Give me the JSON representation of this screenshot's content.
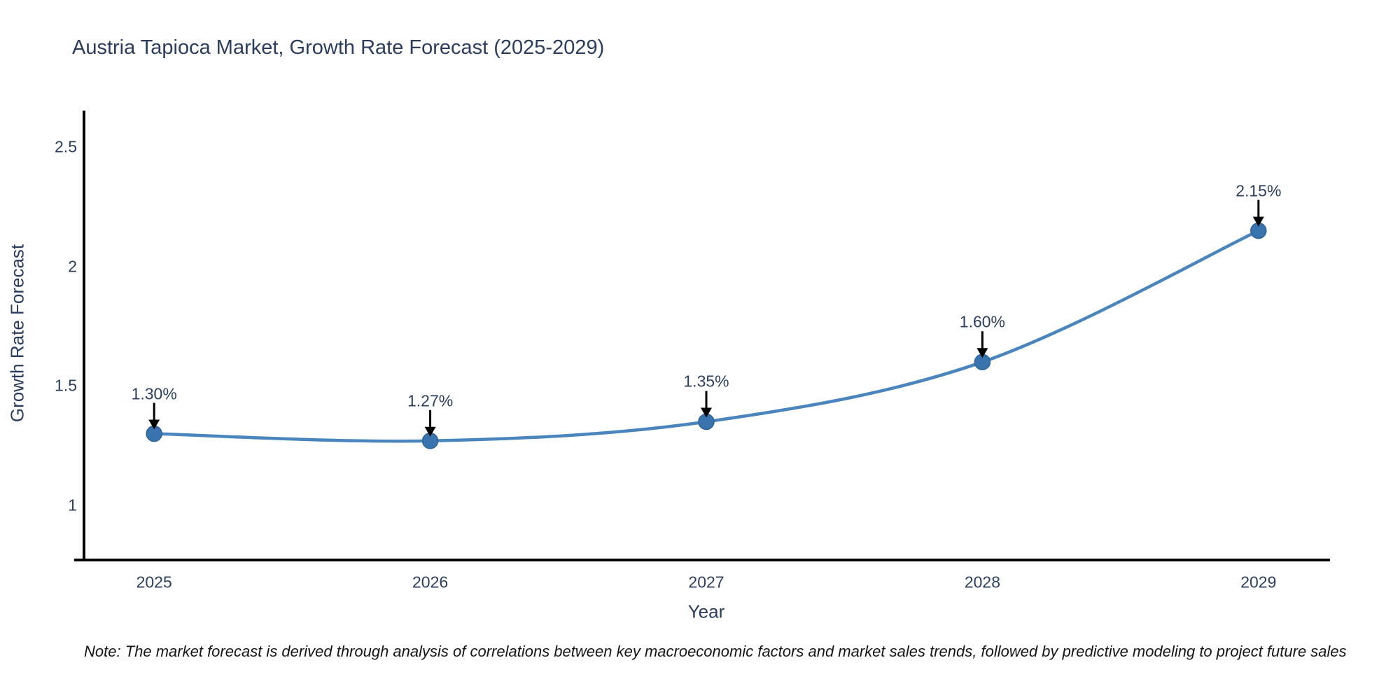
{
  "note": {
    "text": "Note: The market forecast is derived through analysis of correlations between key macroeconomic factors and market sales trends, followed by predictive modeling to project future sales"
  },
  "chart_data": {
    "type": "line",
    "title": "Austria Tapioca Market, Growth Rate Forecast (2025-2029)",
    "xlabel": "Year",
    "ylabel": "Growth Rate Forecast",
    "x": [
      2025,
      2026,
      2027,
      2028,
      2029
    ],
    "y": [
      1.3,
      1.27,
      1.35,
      1.6,
      2.15
    ],
    "point_labels": [
      "1.30%",
      "1.27%",
      "1.35%",
      "1.60%",
      "2.15%"
    ],
    "x_tick_labels": [
      "2025",
      "2026",
      "2027",
      "2028",
      "2029"
    ],
    "yticks": [
      1,
      1.5,
      2,
      2.5
    ],
    "ytick_labels": [
      "1",
      "1.5",
      "2",
      "2.5"
    ],
    "xlim": [
      2024.746,
      2029.254
    ],
    "ylim": [
      0.771,
      2.653
    ],
    "grid": false,
    "legend": false,
    "line_shape": "spline",
    "line_color": "#4a85bd",
    "marker_color": "#3a74ae",
    "marker_edge_color": "#2e6296",
    "axis_line_color": "#000000",
    "arrow_color": "#000000"
  }
}
